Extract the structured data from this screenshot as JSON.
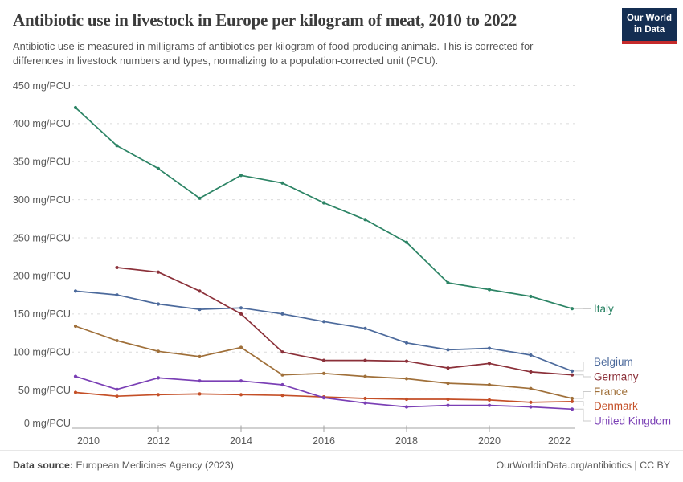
{
  "header": {
    "title": "Antibiotic use in livestock in Europe per kilogram of meat, 2010 to 2022",
    "subtitle": "Antibiotic use is measured in milligrams of antibiotics per kilogram of food-producing animals. This is corrected for differences in livestock numbers and types, normalizing to a population-corrected unit (PCU)."
  },
  "logo": {
    "line1": "Our World",
    "line2": "in Data",
    "bg_color": "#142e52",
    "accent_color": "#c52a2b"
  },
  "chart_data": {
    "type": "line",
    "y_axis_unit": "mg/PCU",
    "ylim": [
      0,
      450
    ],
    "grid": "horizontal-dashed",
    "legend_position": "right-end-labels",
    "x": [
      2010,
      2011,
      2012,
      2013,
      2014,
      2015,
      2016,
      2017,
      2018,
      2019,
      2020,
      2021,
      2022
    ],
    "x_ticks": [
      2010,
      2012,
      2014,
      2016,
      2018,
      2020,
      2022
    ],
    "y_ticks": [
      0,
      50,
      100,
      150,
      200,
      250,
      300,
      350,
      400,
      450
    ],
    "series": [
      {
        "name": "Italy",
        "color": "#2C8465",
        "values": [
          421,
          371,
          341,
          302,
          332,
          322,
          296,
          274,
          244,
          191,
          182,
          173,
          157
        ]
      },
      {
        "name": "Belgium",
        "color": "#4C6A9C",
        "values": [
          180,
          175,
          163,
          156,
          158,
          150,
          140,
          131,
          112,
          103,
          105,
          96,
          75
        ]
      },
      {
        "name": "Germany",
        "color": "#8B3039",
        "values": [
          null,
          211,
          205,
          180,
          150,
          100,
          89,
          89,
          88,
          79,
          85,
          74,
          70
        ]
      },
      {
        "name": "France",
        "color": "#A0703A",
        "values": [
          134,
          115,
          101,
          94,
          106,
          70,
          72,
          68,
          65,
          59,
          57,
          52,
          39
        ]
      },
      {
        "name": "Denmark",
        "color": "#C44F27",
        "values": [
          47,
          42,
          44,
          45,
          44,
          43,
          41,
          39,
          38,
          38,
          37,
          34,
          35
        ]
      },
      {
        "name": "United Kingdom",
        "color": "#7A3FB5",
        "values": [
          68,
          51,
          66,
          62,
          62,
          57,
          40,
          33,
          28,
          30,
          30,
          28,
          25
        ]
      }
    ]
  },
  "footer": {
    "source_label": "Data source:",
    "source_text": "European Medicines Agency (2023)",
    "credit": "OurWorldinData.org/antibiotics | CC BY"
  }
}
